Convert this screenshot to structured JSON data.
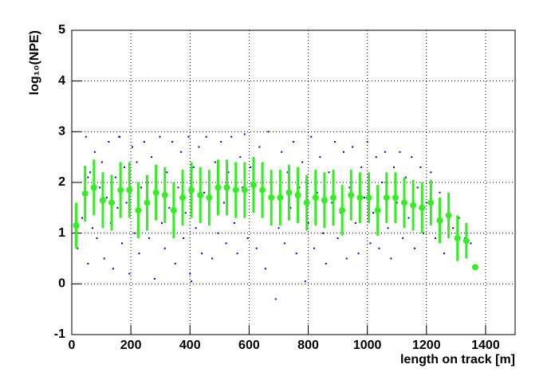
{
  "chart_data": {
    "type": "scatter",
    "x_label": "length on track [m]",
    "y_label": "log₁₀(NPE)",
    "xlim": [
      0,
      1500
    ],
    "ylim": [
      -1,
      5
    ],
    "xticks": [
      0,
      200,
      400,
      600,
      800,
      1000,
      1200,
      1400
    ],
    "yticks": [
      -1,
      0,
      1,
      2,
      3,
      4,
      5
    ],
    "grid": true,
    "scatter": {
      "color": "#0000cc",
      "x": [
        20,
        35,
        48,
        55,
        62,
        70,
        78,
        85,
        95,
        102,
        110,
        118,
        125,
        132,
        140,
        148,
        155,
        162,
        170,
        178,
        185,
        195,
        205,
        212,
        220,
        228,
        235,
        245,
        255,
        262,
        270,
        280,
        290,
        298,
        305,
        315,
        322,
        330,
        340,
        350,
        360,
        370,
        378,
        385,
        395,
        405,
        412,
        420,
        430,
        440,
        448,
        455,
        465,
        475,
        485,
        495,
        505,
        515,
        522,
        530,
        540,
        550,
        560,
        570,
        578,
        585,
        595,
        605,
        615,
        625,
        635,
        645,
        655,
        665,
        675,
        690,
        700,
        710,
        720,
        730,
        740,
        750,
        760,
        770,
        780,
        790,
        800,
        810,
        820,
        830,
        840,
        850,
        860,
        870,
        880,
        890,
        900,
        910,
        920,
        930,
        940,
        950,
        960,
        970,
        980,
        990,
        1000,
        1010,
        1020,
        1030,
        1040,
        1050,
        1060,
        1070,
        1080,
        1090,
        1100,
        1110,
        1120,
        1130,
        1140,
        1150,
        1160,
        1170,
        1180,
        1190,
        1200,
        1215,
        1230,
        1245,
        1260,
        1275,
        1290,
        1310,
        1330,
        1350,
        1370,
        55,
        160,
        400
      ],
      "y": [
        0.7,
        1.3,
        2.9,
        0.4,
        2.2,
        1.1,
        2.6,
        0.9,
        1.9,
        2.4,
        0.5,
        1.7,
        2.8,
        1.2,
        0.3,
        2.1,
        1.5,
        2.9,
        0.8,
        2.3,
        1.6,
        0.2,
        2.7,
        1.0,
        2.4,
        0.6,
        1.9,
        2.8,
        1.3,
        0.9,
        2.5,
        0.1,
        1.8,
        2.9,
        1.2,
        0.7,
        2.2,
        1.5,
        2.8,
        0.4,
        1.9,
        2.6,
        0.9,
        1.4,
        2.9,
        0.05,
        2.3,
        1.1,
        2.7,
        0.6,
        1.8,
        2.9,
        1.3,
        0.5,
        2.4,
        1.0,
        2.8,
        1.6,
        0.8,
        2.2,
        2.9,
        1.2,
        0.6,
        2.5,
        1.9,
        2.95,
        0.9,
        2.3,
        1.5,
        0.7,
        2.7,
        1.4,
        0.3,
        3.0,
        2.0,
        -0.3,
        1.1,
        2.6,
        0.8,
        2.2,
        1.5,
        2.8,
        0.6,
        1.9,
        2.4,
        0.05,
        1.2,
        2.9,
        0.7,
        1.8,
        2.5,
        1.0,
        0.4,
        2.2,
        1.6,
        2.8,
        0.9,
        1.4,
        2.6,
        0.5,
        1.9,
        2.7,
        1.2,
        0.6,
        2.3,
        1.7,
        2.8,
        0.8,
        1.4,
        2.5,
        0.7,
        2.0,
        2.6,
        1.1,
        0.5,
        2.3,
        1.6,
        2.6,
        0.9,
        2.1,
        1.3,
        2.5,
        0.7,
        1.9,
        2.3,
        1.0,
        1.6,
        2.2,
        0.9,
        1.8,
        0.6,
        1.5,
        1.1,
        1.3,
        0.9,
        0.8,
        0.33,
        2.1,
        2.9,
        0.2
      ]
    },
    "profile": {
      "color": "#33ee22",
      "x": [
        15,
        45,
        75,
        105,
        135,
        165,
        195,
        225,
        255,
        285,
        315,
        345,
        375,
        405,
        435,
        465,
        495,
        525,
        555,
        585,
        615,
        645,
        675,
        705,
        735,
        765,
        795,
        825,
        855,
        885,
        915,
        945,
        975,
        1005,
        1035,
        1065,
        1095,
        1125,
        1155,
        1185,
        1215,
        1245,
        1275,
        1305,
        1335,
        1365
      ],
      "y": [
        1.15,
        1.78,
        1.9,
        1.65,
        1.6,
        1.85,
        1.85,
        1.45,
        1.6,
        1.8,
        1.75,
        1.45,
        1.7,
        1.85,
        1.75,
        1.7,
        1.9,
        1.9,
        1.85,
        1.85,
        1.95,
        1.85,
        1.7,
        1.7,
        1.8,
        1.75,
        1.6,
        1.7,
        1.65,
        1.7,
        1.45,
        1.75,
        1.7,
        1.7,
        1.45,
        1.7,
        1.7,
        1.6,
        1.55,
        1.5,
        1.6,
        1.25,
        1.35,
        0.9,
        0.85,
        0.33
      ],
      "error": [
        0.45,
        0.55,
        0.55,
        0.55,
        0.55,
        0.55,
        0.55,
        0.55,
        0.55,
        0.55,
        0.55,
        0.55,
        0.55,
        0.55,
        0.55,
        0.55,
        0.55,
        0.55,
        0.55,
        0.55,
        0.55,
        0.55,
        0.55,
        0.55,
        0.55,
        0.55,
        0.55,
        0.55,
        0.55,
        0.55,
        0.5,
        0.5,
        0.5,
        0.5,
        0.5,
        0.5,
        0.5,
        0.5,
        0.5,
        0.5,
        0.45,
        0.45,
        0.45,
        0.45,
        0.35,
        0.03
      ]
    }
  }
}
